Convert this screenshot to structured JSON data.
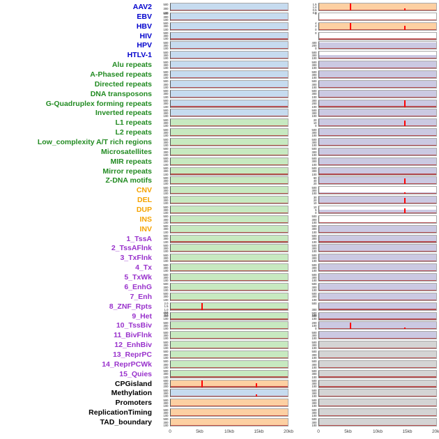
{
  "colors": {
    "label_blue": "#0000cd",
    "label_green": "#228b22",
    "label_orange": "#f5a300",
    "label_purple": "#9932cc",
    "label_black": "#000000",
    "fill_lightblue": "#c6dbef",
    "fill_lightgreen": "#c7e9c0",
    "fill_orange": "#fdd0a2",
    "fill_purple": "#cbc9e2",
    "fill_gray": "#d4d4d4",
    "fill_none": "transparent",
    "spike_red": "#ff0000",
    "baseline_red": "#b03030"
  },
  "chart_data": {
    "type": "area",
    "description": "Two columns of horizontal genomic signal tracks, one row per annotation; red spikes mark enriched positions",
    "x_range_kb": [
      0,
      20
    ],
    "x_ticks": [
      "0",
      "5kb",
      "10kb",
      "15kb",
      "20kb"
    ],
    "default_yticks": [
      "500",
      "300",
      "100"
    ],
    "rows": [
      {
        "label": "AAV2",
        "group": "virus",
        "label_color": "label_blue",
        "left": {
          "fill": "fill_lightblue"
        },
        "right": {
          "fill": "fill_orange",
          "yticks": [
            "1.5",
            "1.0",
            "0.5",
            "0.0"
          ],
          "spikes": [
            {
              "x_kb": 5.3,
              "h": 1.0
            },
            {
              "x_kb": 14.7,
              "h": 0.35
            }
          ]
        }
      },
      {
        "label": "EBV",
        "group": "virus",
        "label_color": "label_blue",
        "left": {
          "fill": "fill_lightblue"
        },
        "right": {
          "fill": "fill_none",
          "yticks": [
            "0"
          ]
        }
      },
      {
        "label": "HBV",
        "group": "virus",
        "label_color": "label_blue",
        "left": {
          "fill": "fill_lightblue"
        },
        "right": {
          "fill": "fill_orange",
          "yticks": [
            "4",
            "2",
            "0"
          ],
          "spikes": [
            {
              "x_kb": 5.3,
              "h": 1.0
            },
            {
              "x_kb": 14.7,
              "h": 0.6
            }
          ]
        }
      },
      {
        "label": "HIV",
        "group": "virus",
        "label_color": "label_blue",
        "left": {
          "fill": "fill_lightblue"
        },
        "right": {
          "fill": "fill_none",
          "yticks": [
            "0"
          ]
        }
      },
      {
        "label": "HPV",
        "group": "virus",
        "label_color": "label_blue",
        "left": {
          "fill": "fill_lightblue"
        },
        "right": {
          "fill": "fill_purple",
          "fill_h": 0.9,
          "yticks": [
            "400",
            "200",
            "0"
          ]
        }
      },
      {
        "label": "HTLV-1",
        "group": "virus",
        "label_color": "label_blue",
        "left": {
          "fill": "fill_lightblue"
        },
        "right": {
          "fill": "fill_purple",
          "fill_h": 0.5
        }
      },
      {
        "label": "Alu repeats",
        "group": "repeat",
        "label_color": "label_green",
        "left": {
          "fill": "fill_lightblue"
        },
        "right": {
          "fill": "fill_purple"
        }
      },
      {
        "label": "A-Phased repeats",
        "group": "repeat",
        "label_color": "label_green",
        "left": {
          "fill": "fill_lightblue"
        },
        "right": {
          "fill": "fill_purple"
        }
      },
      {
        "label": "Directed repeats",
        "group": "repeat",
        "label_color": "label_green",
        "left": {
          "fill": "fill_lightblue"
        },
        "right": {
          "fill": "fill_purple"
        }
      },
      {
        "label": "DNA transposons",
        "group": "repeat",
        "label_color": "label_green",
        "left": {
          "fill": "fill_lightblue"
        },
        "right": {
          "fill": "fill_purple"
        }
      },
      {
        "label": "G-Quadruplex forming repeats",
        "group": "repeat",
        "label_color": "label_green",
        "left": {
          "fill": "fill_lightblue"
        },
        "right": {
          "fill": "fill_purple",
          "yticks": [
            "300",
            "200",
            "100"
          ],
          "spikes": [
            {
              "x_kb": 14.7,
              "h": 0.95
            }
          ]
        }
      },
      {
        "label": "Inverted repeats",
        "group": "repeat",
        "label_color": "label_green",
        "left": {
          "fill": "fill_lightblue"
        },
        "right": {
          "fill": "fill_purple"
        }
      },
      {
        "label": "L1 repeats",
        "group": "repeat",
        "label_color": "label_green",
        "left": {
          "fill": "fill_lightgreen"
        },
        "right": {
          "fill": "fill_purple",
          "yticks": [
            "20",
            "10",
            "0"
          ],
          "spikes": [
            {
              "x_kb": 14.7,
              "h": 0.85
            }
          ]
        }
      },
      {
        "label": "L2 repeats",
        "group": "repeat",
        "label_color": "label_green",
        "left": {
          "fill": "fill_lightgreen"
        },
        "right": {
          "fill": "fill_purple"
        }
      },
      {
        "label": "Low_complexity A/T rich regions",
        "group": "repeat",
        "label_color": "label_green",
        "left": {
          "fill": "fill_lightgreen"
        },
        "right": {
          "fill": "fill_purple"
        }
      },
      {
        "label": "Microsatellites",
        "group": "repeat",
        "label_color": "label_green",
        "left": {
          "fill": "fill_lightgreen"
        },
        "right": {
          "fill": "fill_purple"
        }
      },
      {
        "label": "MIR repeats",
        "group": "repeat",
        "label_color": "label_green",
        "left": {
          "fill": "fill_lightgreen"
        },
        "right": {
          "fill": "fill_purple"
        }
      },
      {
        "label": "Mirror repeats",
        "group": "repeat",
        "label_color": "label_green",
        "left": {
          "fill": "fill_lightgreen"
        },
        "right": {
          "fill": "fill_purple"
        }
      },
      {
        "label": "Z-DNA motifs",
        "group": "repeat",
        "label_color": "label_green",
        "left": {
          "fill": "fill_lightgreen"
        },
        "right": {
          "fill": "fill_purple",
          "yticks": [
            "60",
            "40",
            "20"
          ],
          "spikes": [
            {
              "x_kb": 14.7,
              "h": 0.85
            }
          ]
        }
      },
      {
        "label": "CNV",
        "group": "sv",
        "label_color": "label_orange",
        "left": {
          "fill": "fill_lightgreen"
        },
        "right": {
          "fill": "fill_purple",
          "fill_h": 0.2,
          "spikes": [
            {
              "x_kb": 14.7,
              "h": 0.25
            }
          ]
        }
      },
      {
        "label": "DEL",
        "group": "sv",
        "label_color": "label_orange",
        "left": {
          "fill": "fill_lightgreen"
        },
        "right": {
          "fill": "fill_purple",
          "yticks": [
            "30",
            "20",
            "10"
          ],
          "spikes": [
            {
              "x_kb": 14.7,
              "h": 0.85
            }
          ]
        }
      },
      {
        "label": "DUP",
        "group": "sv",
        "label_color": "label_orange",
        "left": {
          "fill": "fill_lightgreen"
        },
        "right": {
          "fill": "fill_purple",
          "fill_h": 0.5,
          "yticks": [
            "10",
            "5",
            "0"
          ],
          "spikes": [
            {
              "x_kb": 14.7,
              "h": 0.7
            }
          ]
        }
      },
      {
        "label": "INS",
        "group": "sv",
        "label_color": "label_orange",
        "left": {
          "fill": "fill_lightgreen"
        },
        "right": {
          "fill": "fill_purple",
          "fill_h": 0.12
        }
      },
      {
        "label": "INV",
        "group": "sv",
        "label_color": "label_orange",
        "left": {
          "fill": "fill_lightgreen"
        },
        "right": {
          "fill": "fill_purple"
        }
      },
      {
        "label": "1_TssA",
        "group": "chromatin_state",
        "label_color": "label_purple",
        "left": {
          "fill": "fill_lightgreen"
        },
        "right": {
          "fill": "fill_purple"
        }
      },
      {
        "label": "2_TssAFlnk",
        "group": "chromatin_state",
        "label_color": "label_purple",
        "left": {
          "fill": "fill_lightgreen"
        },
        "right": {
          "fill": "fill_purple"
        }
      },
      {
        "label": "3_TxFlnk",
        "group": "chromatin_state",
        "label_color": "label_purple",
        "left": {
          "fill": "fill_lightgreen"
        },
        "right": {
          "fill": "fill_purple"
        }
      },
      {
        "label": "4_Tx",
        "group": "chromatin_state",
        "label_color": "label_purple",
        "left": {
          "fill": "fill_lightgreen"
        },
        "right": {
          "fill": "fill_purple"
        }
      },
      {
        "label": "5_TxWk",
        "group": "chromatin_state",
        "label_color": "label_purple",
        "left": {
          "fill": "fill_lightgreen"
        },
        "right": {
          "fill": "fill_purple"
        }
      },
      {
        "label": "6_EnhG",
        "group": "chromatin_state",
        "label_color": "label_purple",
        "left": {
          "fill": "fill_lightgreen"
        },
        "right": {
          "fill": "fill_purple"
        }
      },
      {
        "label": "7_Enh",
        "group": "chromatin_state",
        "label_color": "label_purple",
        "left": {
          "fill": "fill_lightgreen"
        },
        "right": {
          "fill": "fill_purple"
        }
      },
      {
        "label": "8_ZNF_Rpts",
        "group": "chromatin_state",
        "label_color": "label_purple",
        "left": {
          "fill": "fill_lightgreen",
          "yticks": [
            "2.0",
            "1.5",
            "1.0",
            "0.5",
            "0.0"
          ],
          "spikes": [
            {
              "x_kb": 5.3,
              "h": 0.95
            }
          ]
        },
        "right": {
          "fill": "fill_purple"
        }
      },
      {
        "label": "9_Het",
        "group": "chromatin_state",
        "label_color": "label_purple",
        "left": {
          "fill": "fill_lightgreen"
        },
        "right": {
          "fill": "fill_purple"
        }
      },
      {
        "label": "10_TssBiv",
        "group": "chromatin_state",
        "label_color": "label_purple",
        "left": {
          "fill": "fill_lightgreen"
        },
        "right": {
          "fill": "fill_purple",
          "yticks": [
            "200",
            "100",
            "0"
          ],
          "spikes": [
            {
              "x_kb": 5.3,
              "h": 0.95
            },
            {
              "x_kb": 14.7,
              "h": 0.2
            }
          ]
        }
      },
      {
        "label": "11_BivFlnk",
        "group": "chromatin_state",
        "label_color": "label_purple",
        "left": {
          "fill": "fill_lightgreen"
        },
        "right": {
          "fill": "fill_purple"
        }
      },
      {
        "label": "12_EnhBiv",
        "group": "chromatin_state",
        "label_color": "label_purple",
        "left": {
          "fill": "fill_lightgreen"
        },
        "right": {
          "fill": "fill_gray"
        }
      },
      {
        "label": "13_ReprPC",
        "group": "chromatin_state",
        "label_color": "label_purple",
        "left": {
          "fill": "fill_lightgreen"
        },
        "right": {
          "fill": "fill_gray"
        }
      },
      {
        "label": "14_ReprPCWk",
        "group": "chromatin_state",
        "label_color": "label_purple",
        "left": {
          "fill": "fill_lightgreen"
        },
        "right": {
          "fill": "fill_gray"
        }
      },
      {
        "label": "15_Quies",
        "group": "chromatin_state",
        "label_color": "label_purple",
        "left": {
          "fill": "fill_lightgreen"
        },
        "right": {
          "fill": "fill_gray"
        }
      },
      {
        "label": "CPGisland",
        "group": "regulatory",
        "label_color": "label_black",
        "left": {
          "fill": "fill_orange",
          "yticks": [
            "600",
            "400",
            "200"
          ],
          "spikes": [
            {
              "x_kb": 5.3,
              "h": 0.95
            },
            {
              "x_kb": 14.7,
              "h": 0.55
            }
          ]
        },
        "right": {
          "fill": "fill_gray"
        }
      },
      {
        "label": "Methylation",
        "group": "regulatory",
        "label_color": "label_black",
        "left": {
          "fill": "fill_lightblue",
          "spikes": [
            {
              "x_kb": 14.7,
              "h": 0.3
            }
          ]
        },
        "right": {
          "fill": "fill_gray"
        }
      },
      {
        "label": "Promoters",
        "group": "regulatory",
        "label_color": "label_black",
        "left": {
          "fill": "fill_orange"
        },
        "right": {
          "fill": "fill_gray"
        }
      },
      {
        "label": "ReplicationTiming",
        "group": "regulatory",
        "label_color": "label_black",
        "left": {
          "fill": "fill_orange"
        },
        "right": {
          "fill": "fill_gray"
        }
      },
      {
        "label": "TAD_boundary",
        "group": "regulatory",
        "label_color": "label_black",
        "left": {
          "fill": "fill_orange"
        },
        "right": {
          "fill": "fill_gray"
        }
      }
    ]
  }
}
